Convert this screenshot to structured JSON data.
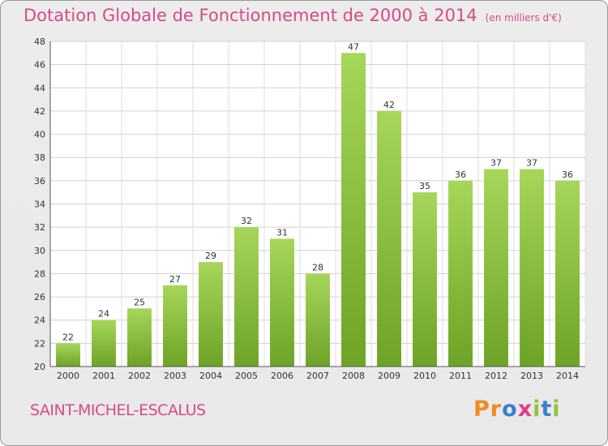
{
  "title": "Dotation Globale de Fonctionnement de 2000 à 2014",
  "unit": "(en milliers d'€)",
  "commune": "SAINT-MICHEL-ESCALUS",
  "logo": {
    "letters": [
      "P",
      "r",
      "o",
      "x",
      "i",
      "t",
      "i"
    ],
    "colors": [
      "#f08a1c",
      "#f08a1c",
      "#3a7fd0",
      "#e23a8c",
      "#8dc63f",
      "#3a7fd0",
      "#8dc63f"
    ]
  },
  "colors": {
    "bar_top": "#a6d65a",
    "bar_bottom": "#6da326",
    "title": "#d54b82"
  },
  "chart_data": {
    "type": "bar",
    "title": "Dotation Globale de Fonctionnement de 2000 à 2014",
    "subtitle": "(en milliers d'€)",
    "xlabel": "",
    "ylabel": "",
    "categories": [
      "2000",
      "2001",
      "2002",
      "2003",
      "2004",
      "2005",
      "2006",
      "2007",
      "2008",
      "2009",
      "2010",
      "2011",
      "2012",
      "2013",
      "2014"
    ],
    "values": [
      22,
      24,
      25,
      27,
      29,
      32,
      31,
      28,
      47,
      42,
      35,
      36,
      37,
      37,
      36
    ],
    "ylim": [
      20,
      48
    ],
    "yticks": [
      20,
      22,
      24,
      26,
      28,
      30,
      32,
      34,
      36,
      38,
      40,
      42,
      44,
      46,
      48
    ],
    "grid": true,
    "legend": "none"
  }
}
